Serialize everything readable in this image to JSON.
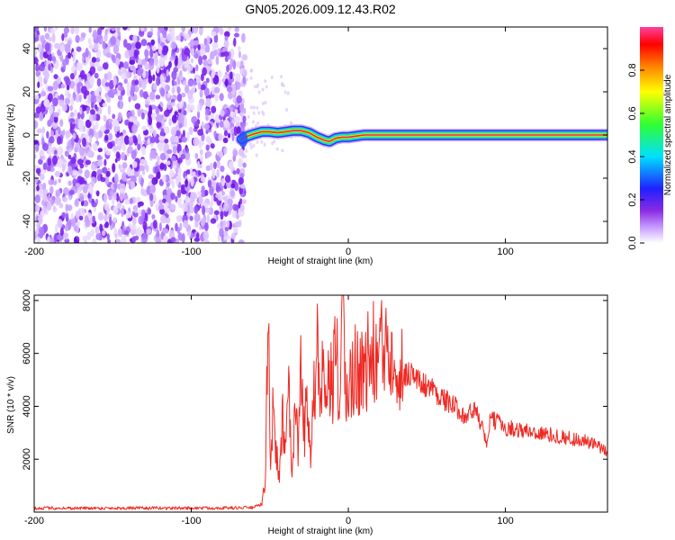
{
  "title": "GN05.2026.009.12.43.R02",
  "colors": {
    "snr_line": "#ee2a24",
    "scatter_base": "#7b22ee",
    "ridge_core": "#f0205a",
    "frame": "#000000"
  },
  "chart_data": [
    {
      "type": "heatmap",
      "title": "GN05.2026.009.12.43.R02",
      "xlabel": "Height of straight line (km)",
      "ylabel": "Frequency (Hz)",
      "xlim": [
        -200,
        165
      ],
      "ylim": [
        -50,
        50
      ],
      "x_ticks": [
        -200,
        -100,
        0,
        100
      ],
      "y_ticks": [
        -40,
        -20,
        0,
        20,
        40
      ],
      "colorbar": {
        "label": "Normalized spectral amplitude",
        "range": [
          0,
          1
        ],
        "ticks": [
          0.0,
          0.2,
          0.4,
          0.6,
          0.8
        ],
        "colormap": "rainbow (white-violet-blue-cyan-green-yellow-red-magenta)"
      },
      "noise_region": {
        "x_range": [
          -200,
          -66
        ],
        "y_range": [
          -50,
          50
        ],
        "amplitude": "0.1-0.3"
      },
      "ridge": {
        "x": [
          -68,
          -64,
          -60,
          -55,
          -50,
          -45,
          -40,
          -35,
          -30,
          -25,
          -20,
          -15,
          -12,
          -8,
          -4,
          0,
          5,
          10,
          20,
          40,
          60,
          80,
          100,
          120,
          140,
          165
        ],
        "y": [
          -2,
          -0.5,
          0.5,
          1.5,
          1.5,
          1,
          1.5,
          2,
          2,
          1,
          -1,
          -2.5,
          -3,
          -1.5,
          -1,
          -1,
          -0.5,
          0,
          0,
          0,
          0,
          0,
          0,
          0,
          0,
          0
        ]
      }
    },
    {
      "type": "line",
      "title": "",
      "xlabel": "Height of straight line (km)",
      "ylabel": "SNR (10 * v/v)",
      "xlim": [
        -200,
        165
      ],
      "ylim": [
        0,
        8200
      ],
      "x_ticks": [
        -200,
        -100,
        0,
        100
      ],
      "y_ticks": [
        2000,
        4000,
        6000,
        8000
      ],
      "series": [
        {
          "x": [
            -200,
            -150,
            -100,
            -70,
            -60,
            -55,
            -53,
            -52,
            -51,
            -50,
            -49,
            -48,
            -46,
            -44,
            -42,
            -40,
            -38,
            -36,
            -34,
            -32,
            -30,
            -28,
            -26,
            -24,
            -22,
            -21,
            -20,
            -19,
            -18,
            -16,
            -14,
            -12,
            -10,
            -8,
            -6,
            -4,
            -2,
            0,
            2,
            4,
            6,
            8,
            10,
            12,
            14,
            16,
            18,
            20,
            22,
            24,
            26,
            28,
            30,
            32,
            35,
            40,
            45,
            50,
            55,
            60,
            65,
            70,
            75,
            80,
            85,
            88,
            90,
            95,
            100,
            110,
            120,
            130,
            140,
            150,
            160,
            165
          ],
          "y": [
            150,
            150,
            150,
            160,
            180,
            300,
            1200,
            4000,
            7500,
            3000,
            1500,
            4200,
            2500,
            1000,
            3800,
            2000,
            4800,
            900,
            4000,
            2500,
            5300,
            2800,
            4800,
            2200,
            5500,
            3000,
            8200,
            4500,
            3500,
            5800,
            3000,
            5500,
            4000,
            7000,
            3800,
            7800,
            4500,
            5200,
            4800,
            5500,
            5200,
            5800,
            5000,
            5800,
            5500,
            6000,
            5700,
            6300,
            5800,
            6600,
            6200,
            6800,
            6000,
            5500,
            5200,
            5300,
            4900,
            4800,
            4600,
            4300,
            4100,
            3900,
            3600,
            3900,
            3300,
            2400,
            3500,
            3400,
            3200,
            3100,
            3000,
            2900,
            2800,
            2700,
            2450,
            2200
          ]
        }
      ]
    }
  ]
}
